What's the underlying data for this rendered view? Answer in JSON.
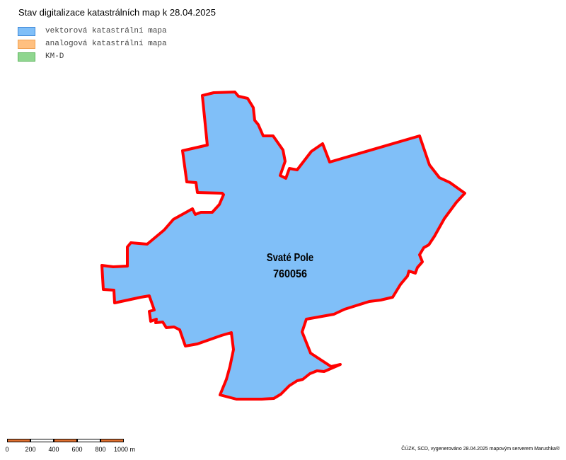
{
  "title": "Stav digitalizace katastrálních map k 28.04.2025",
  "legend": [
    {
      "label": "vektorová katastrální mapa",
      "fill": "#80bff8",
      "stroke": "#3d86d6"
    },
    {
      "label": "analogová katastrální mapa",
      "fill": "#ffc080",
      "stroke": "#f0a050"
    },
    {
      "label": "KM-D",
      "fill": "#8fd68f",
      "stroke": "#5fb65f"
    }
  ],
  "parcel": {
    "name": "Svaté Pole",
    "code": "760056",
    "status": "vektorová katastrální mapa",
    "fill": "#80bff8",
    "border": "#ff0000"
  },
  "scalebar": {
    "labels": [
      "0",
      "200",
      "400",
      "600",
      "800",
      "1000 m"
    ],
    "color_a": "#e07030",
    "color_b": "#ffffff"
  },
  "credit": "ČÚZK, SCD, vygenerováno 28.04.2025 mapovým serverem Marushka®"
}
